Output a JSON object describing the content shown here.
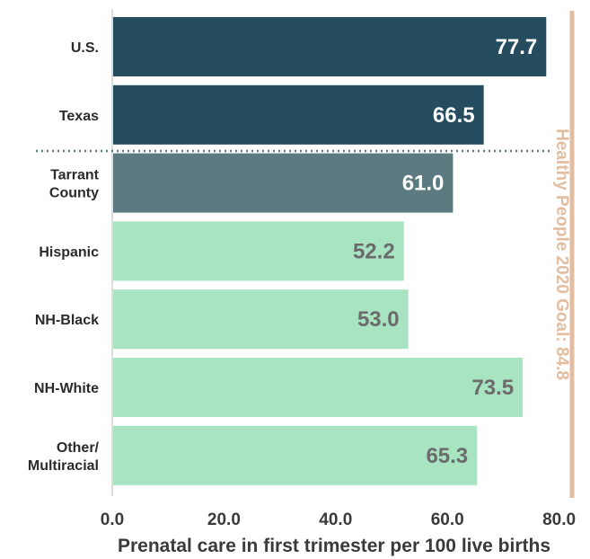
{
  "chart_data": {
    "type": "bar",
    "orientation": "horizontal",
    "categories": [
      "U.S.",
      "Texas",
      "Tarrant County",
      "Hispanic",
      "NH-Black",
      "NH-White",
      "Other/ Multiracial"
    ],
    "category_lines": [
      [
        "U.S."
      ],
      [
        "Texas"
      ],
      [
        "Tarrant",
        "County"
      ],
      [
        "Hispanic"
      ],
      [
        "NH-Black"
      ],
      [
        "NH-White"
      ],
      [
        "Other/",
        "Multiracial"
      ]
    ],
    "values": [
      77.7,
      66.5,
      61.0,
      52.2,
      53.0,
      73.5,
      65.3
    ],
    "value_labels": [
      "77.7",
      "66.5",
      "61.0",
      "52.2",
      "53.0",
      "73.5",
      "65.3"
    ],
    "bar_colors": [
      "#264d5f",
      "#264d5f",
      "#5b7b80",
      "#a8e3c2",
      "#a8e3c2",
      "#a8e3c2",
      "#a8e3c2"
    ],
    "value_label_colors": [
      "#ffffff",
      "#ffffff",
      "#ffffff",
      "#6b6b6b",
      "#6b6b6b",
      "#6b6b6b",
      "#6b6b6b"
    ],
    "title": "",
    "xlabel": "Prenatal care in first trimester per 100 live births",
    "ylabel": "",
    "xlim": [
      0,
      80
    ],
    "x_ticks": [
      0,
      20,
      40,
      60,
      80
    ],
    "x_tick_labels": [
      "0.0",
      "20.0",
      "40.0",
      "60.0",
      "80.0"
    ],
    "grid": false,
    "legend": "none",
    "goal_line": {
      "label": "Healthy People 2020 Goal: 84.8",
      "value": 84.8,
      "color": "#e3bda0"
    },
    "separator": {
      "after_category_index": 1,
      "style": "dotted",
      "color": "#5a7d86"
    }
  }
}
